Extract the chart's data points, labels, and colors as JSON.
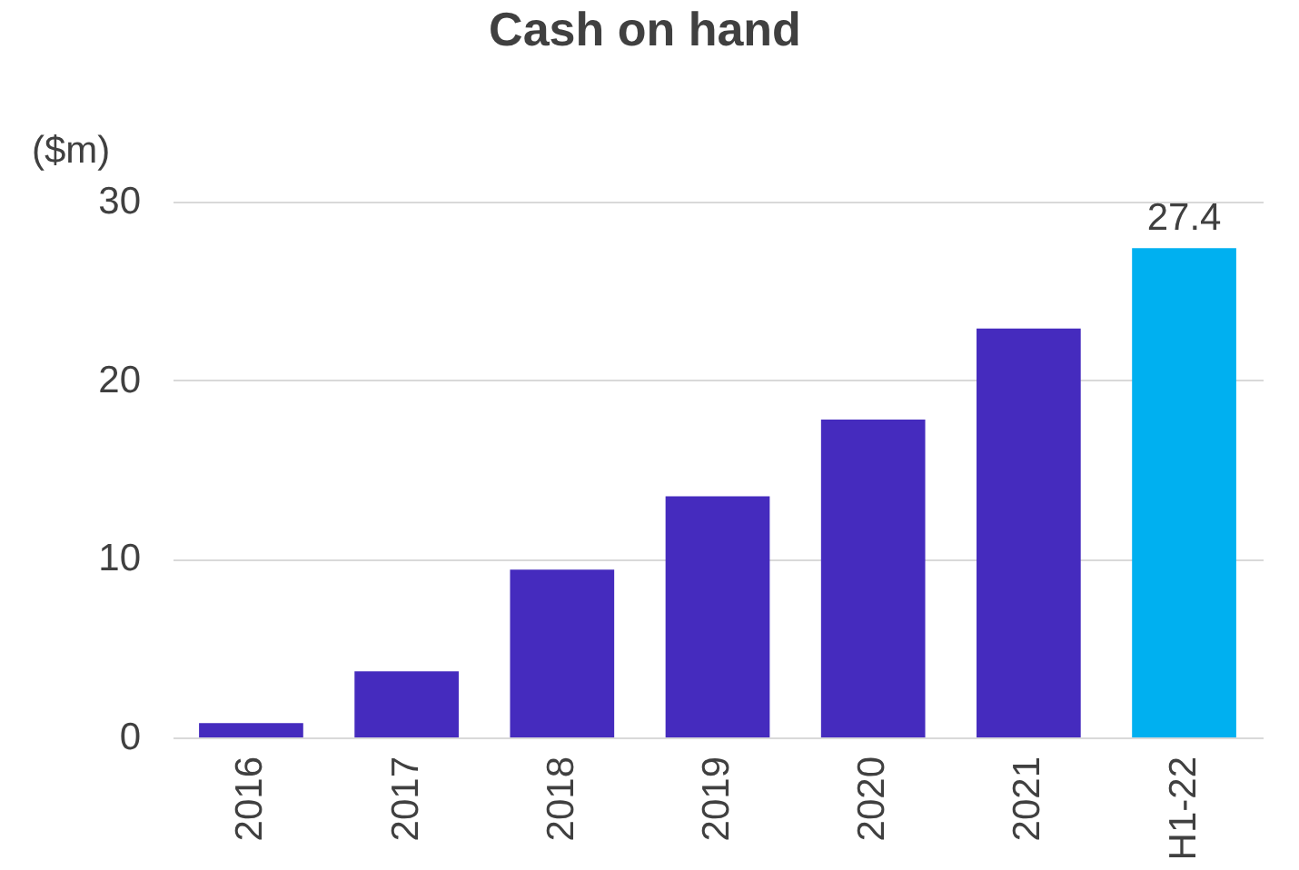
{
  "chart_data": {
    "type": "bar",
    "title": "Cash on hand",
    "ylabel": "($m)",
    "categories": [
      "2016",
      "2017",
      "2018",
      "2019",
      "2020",
      "2021",
      "H1-22"
    ],
    "values": [
      0.8,
      3.7,
      9.4,
      13.5,
      17.8,
      22.9,
      27.4
    ],
    "colors": [
      "#452bbe",
      "#452bbe",
      "#452bbe",
      "#452bbe",
      "#452bbe",
      "#452bbe",
      "#00b0f0"
    ],
    "value_labels": [
      null,
      null,
      null,
      null,
      null,
      null,
      "27.4"
    ],
    "ylim": [
      0,
      30
    ],
    "yticks": [
      0,
      10,
      20,
      30
    ],
    "grid": "y"
  }
}
